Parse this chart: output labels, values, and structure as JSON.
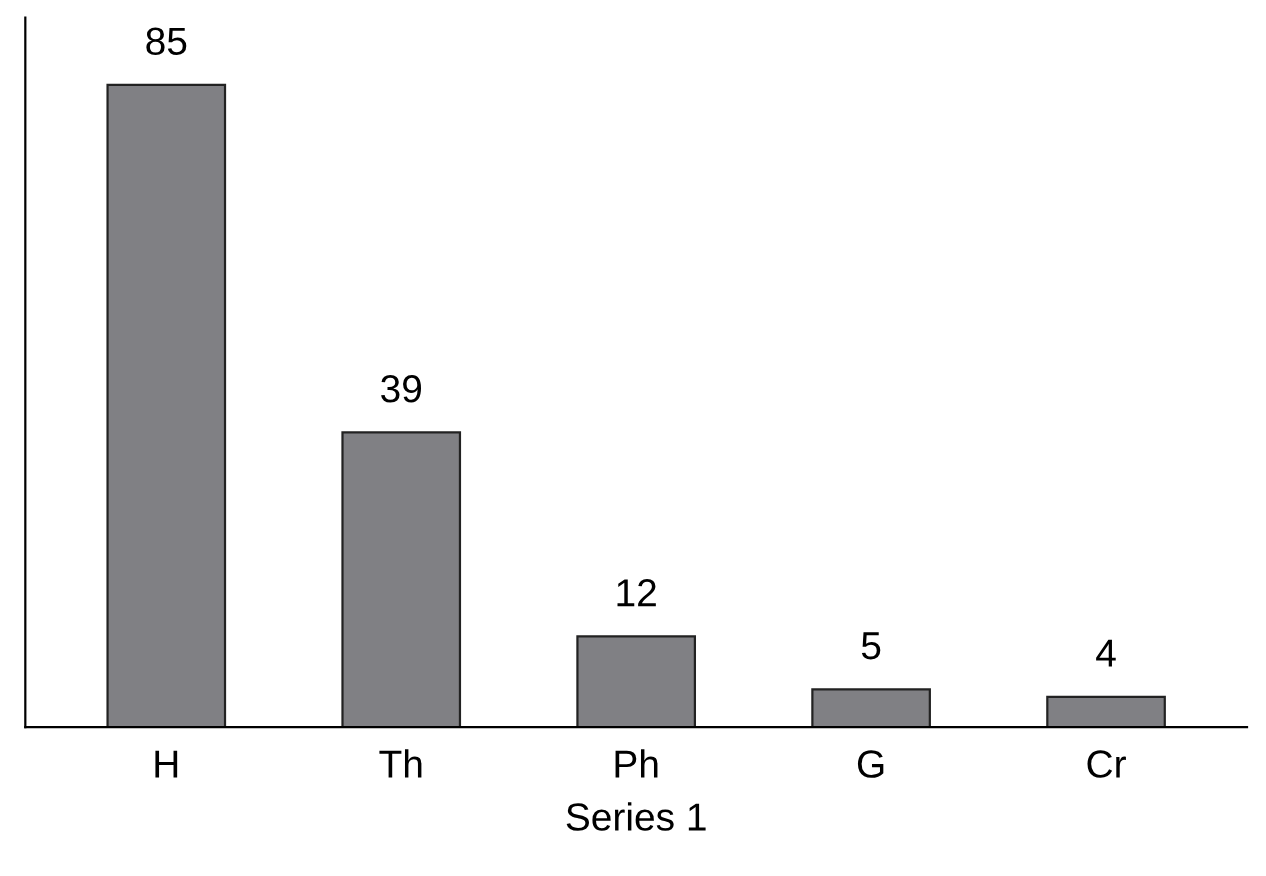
{
  "chart_data": {
    "type": "bar",
    "xlabel": "Series 1",
    "categories": [
      "H",
      "Th",
      "Ph",
      "G",
      "Cr"
    ],
    "values": [
      85,
      39,
      12,
      5,
      4
    ],
    "color": "#808084",
    "data_labels": true,
    "grid": false
  }
}
